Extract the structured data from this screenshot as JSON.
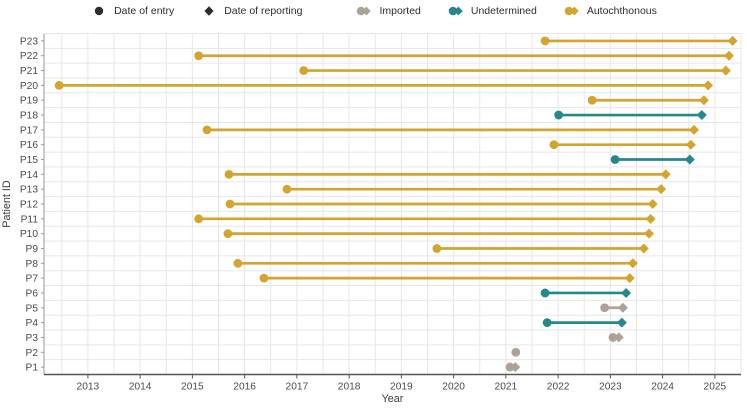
{
  "figure": {
    "legend": {
      "items": [
        {
          "label": "Date of entry",
          "marker": "circle",
          "color": "#2d2d2d",
          "gap_before": false
        },
        {
          "label": "Date of reporting",
          "marker": "diamond",
          "color": "#2d2d2d",
          "gap_before": false
        },
        {
          "label": "Imported",
          "marker": "circle-diamond",
          "color": "#aca395",
          "gap_before": true
        },
        {
          "label": "Undetermined",
          "marker": "circle-diamond",
          "color": "#24888c",
          "gap_before": false
        },
        {
          "label": "Autochthonous",
          "marker": "circle-diamond",
          "color": "#d3a52e",
          "gap_before": false
        }
      ]
    }
  },
  "chart_data": {
    "type": "scatter",
    "subtype": "dumbbell-timeline",
    "title": "",
    "xlabel": "Year",
    "ylabel": "Patient ID",
    "x_ticks": [
      "2013",
      "2014",
      "2015",
      "2016",
      "2017",
      "2018",
      "2019",
      "2020",
      "2021",
      "2022",
      "2023",
      "2024",
      "2025"
    ],
    "x_tick_values": [
      2013,
      2014,
      2015,
      2016,
      2017,
      2018,
      2019,
      2020,
      2021,
      2022,
      2023,
      2024,
      2025
    ],
    "xlim": [
      2012.16,
      2025.5
    ],
    "x_minor_grid_step": 0.5,
    "grid": true,
    "legend_position": "top",
    "categories": [
      "P1",
      "P2",
      "P3",
      "P4",
      "P5",
      "P6",
      "P7",
      "P8",
      "P9",
      "P10",
      "P11",
      "P12",
      "P13",
      "P14",
      "P15",
      "P16",
      "P17",
      "P18",
      "P19",
      "P20",
      "P21",
      "P22",
      "P23"
    ],
    "classification_colors": {
      "Imported": "#aca395",
      "Undetermined": "#24888c",
      "Autochthonous": "#d3a52e"
    },
    "patients": [
      {
        "id": "P1",
        "entry": 2021.08,
        "reporting": 2021.18,
        "classification": "Imported"
      },
      {
        "id": "P2",
        "entry": 2021.19,
        "reporting": null,
        "classification": "Imported"
      },
      {
        "id": "P3",
        "entry": 2023.05,
        "reporting": 2023.16,
        "classification": "Imported"
      },
      {
        "id": "P4",
        "entry": 2021.79,
        "reporting": 2023.22,
        "classification": "Undetermined"
      },
      {
        "id": "P5",
        "entry": 2022.89,
        "reporting": 2023.24,
        "classification": "Imported"
      },
      {
        "id": "P6",
        "entry": 2021.75,
        "reporting": 2023.3,
        "classification": "Undetermined"
      },
      {
        "id": "P7",
        "entry": 2016.37,
        "reporting": 2023.37,
        "classification": "Autochthonous"
      },
      {
        "id": "P8",
        "entry": 2015.87,
        "reporting": 2023.43,
        "classification": "Autochthonous"
      },
      {
        "id": "P9",
        "entry": 2019.68,
        "reporting": 2023.64,
        "classification": "Autochthonous"
      },
      {
        "id": "P10",
        "entry": 2015.68,
        "reporting": 2023.74,
        "classification": "Autochthonous"
      },
      {
        "id": "P11",
        "entry": 2015.12,
        "reporting": 2023.77,
        "classification": "Autochthonous"
      },
      {
        "id": "P12",
        "entry": 2015.72,
        "reporting": 2023.81,
        "classification": "Autochthonous"
      },
      {
        "id": "P13",
        "entry": 2016.81,
        "reporting": 2023.97,
        "classification": "Autochthonous"
      },
      {
        "id": "P14",
        "entry": 2015.7,
        "reporting": 2024.06,
        "classification": "Autochthonous"
      },
      {
        "id": "P15",
        "entry": 2023.09,
        "reporting": 2024.52,
        "classification": "Undetermined"
      },
      {
        "id": "P16",
        "entry": 2021.92,
        "reporting": 2024.54,
        "classification": "Autochthonous"
      },
      {
        "id": "P17",
        "entry": 2015.28,
        "reporting": 2024.6,
        "classification": "Autochthonous"
      },
      {
        "id": "P18",
        "entry": 2022.01,
        "reporting": 2024.75,
        "classification": "Undetermined"
      },
      {
        "id": "P19",
        "entry": 2022.65,
        "reporting": 2024.79,
        "classification": "Autochthonous"
      },
      {
        "id": "P20",
        "entry": 2012.45,
        "reporting": 2024.87,
        "classification": "Autochthonous"
      },
      {
        "id": "P21",
        "entry": 2017.13,
        "reporting": 2025.21,
        "classification": "Autochthonous"
      },
      {
        "id": "P22",
        "entry": 2015.12,
        "reporting": 2025.27,
        "classification": "Autochthonous"
      },
      {
        "id": "P23",
        "entry": 2021.75,
        "reporting": 2025.34,
        "classification": "Autochthonous"
      }
    ]
  }
}
